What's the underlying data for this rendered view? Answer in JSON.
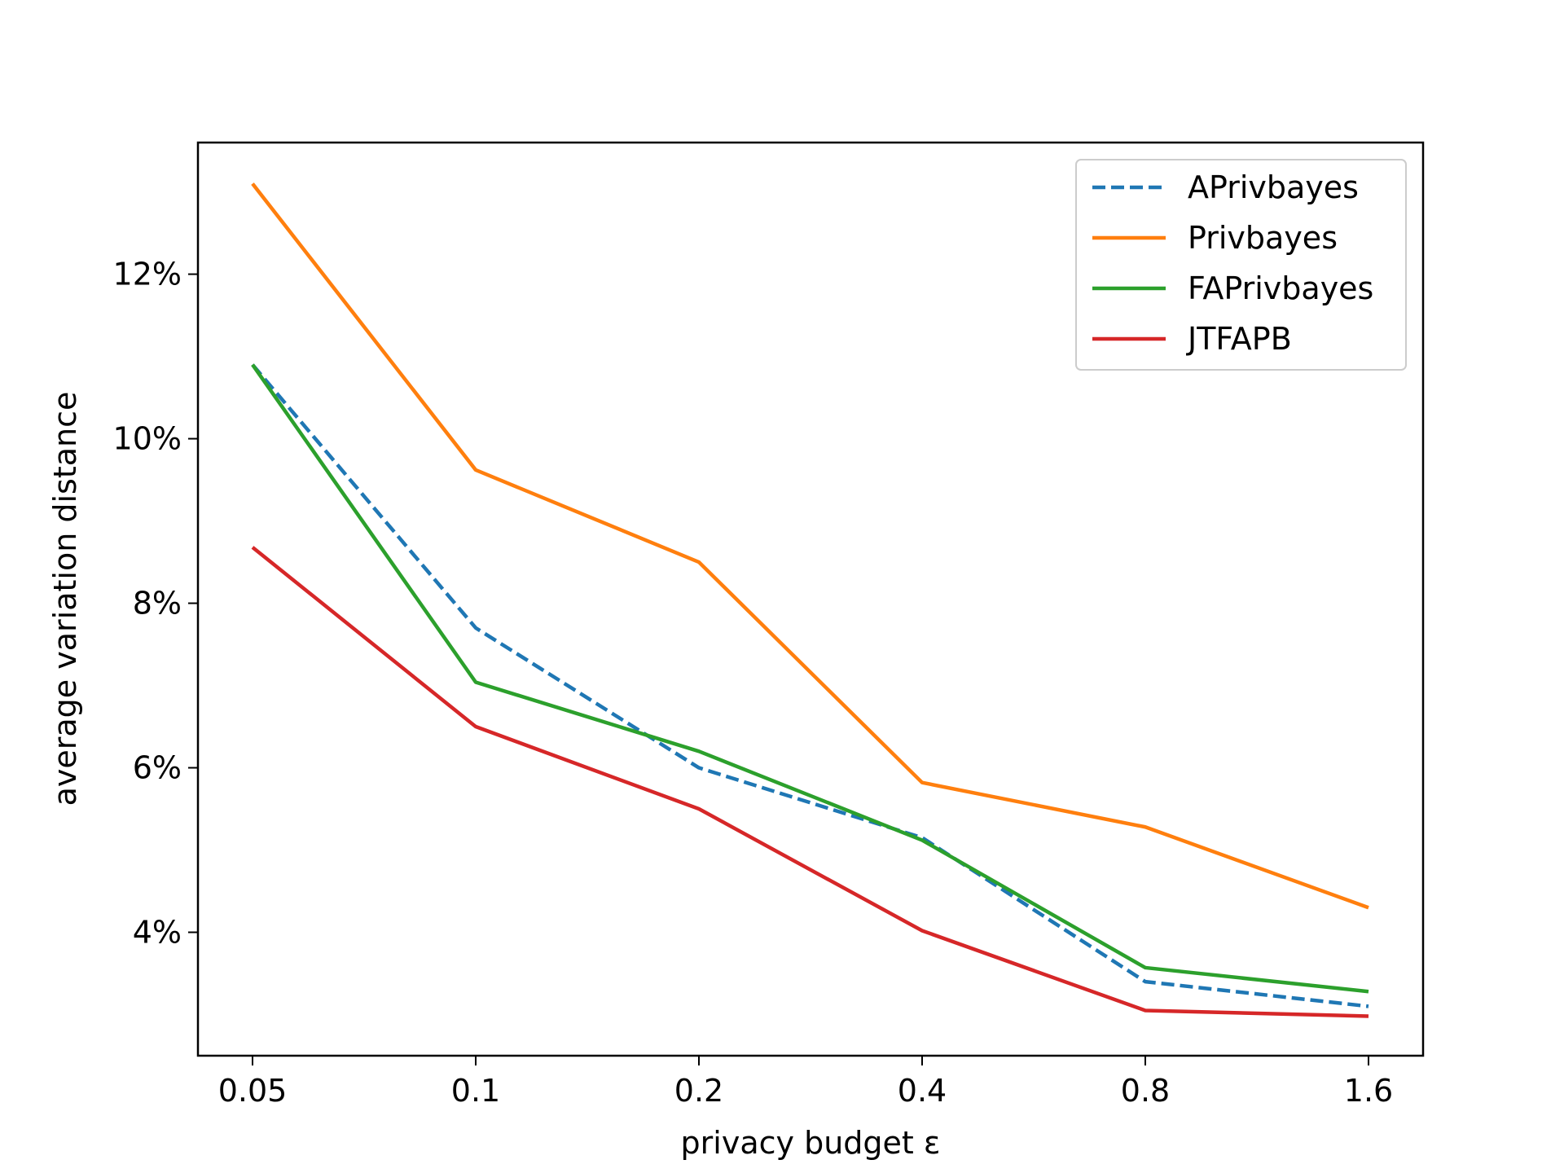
{
  "chart_data": {
    "type": "line",
    "x": [
      "0.05",
      "0.1",
      "0.2",
      "0.4",
      "0.8",
      "1.6"
    ],
    "xlabel": "privacy budget ε",
    "ylabel": "average variation distance",
    "y_unit": "%",
    "ylim": [
      2.5,
      13.6
    ],
    "yticks": [
      {
        "value": 4,
        "label": "4%"
      },
      {
        "value": 6,
        "label": "6%"
      },
      {
        "value": 8,
        "label": "8%"
      },
      {
        "value": 10,
        "label": "10%"
      },
      {
        "value": 12,
        "label": "12%"
      }
    ],
    "grid": false,
    "legend_position": "top-right",
    "series": [
      {
        "name": "APrivbayes",
        "color": "#1f77b4",
        "style": "dashed",
        "values": [
          10.9,
          7.7,
          6.0,
          5.15,
          3.4,
          3.1
        ]
      },
      {
        "name": "Privbayes",
        "color": "#ff7f0e",
        "style": "solid",
        "values": [
          13.1,
          9.62,
          8.5,
          5.82,
          5.28,
          4.3
        ]
      },
      {
        "name": "FAPrivbayes",
        "color": "#2ca02c",
        "style": "solid",
        "values": [
          10.9,
          7.04,
          6.2,
          5.12,
          3.57,
          3.28
        ]
      },
      {
        "name": "JTFAPB",
        "color": "#d62728",
        "style": "solid",
        "values": [
          8.68,
          6.5,
          5.5,
          4.02,
          3.05,
          2.98
        ]
      }
    ]
  }
}
